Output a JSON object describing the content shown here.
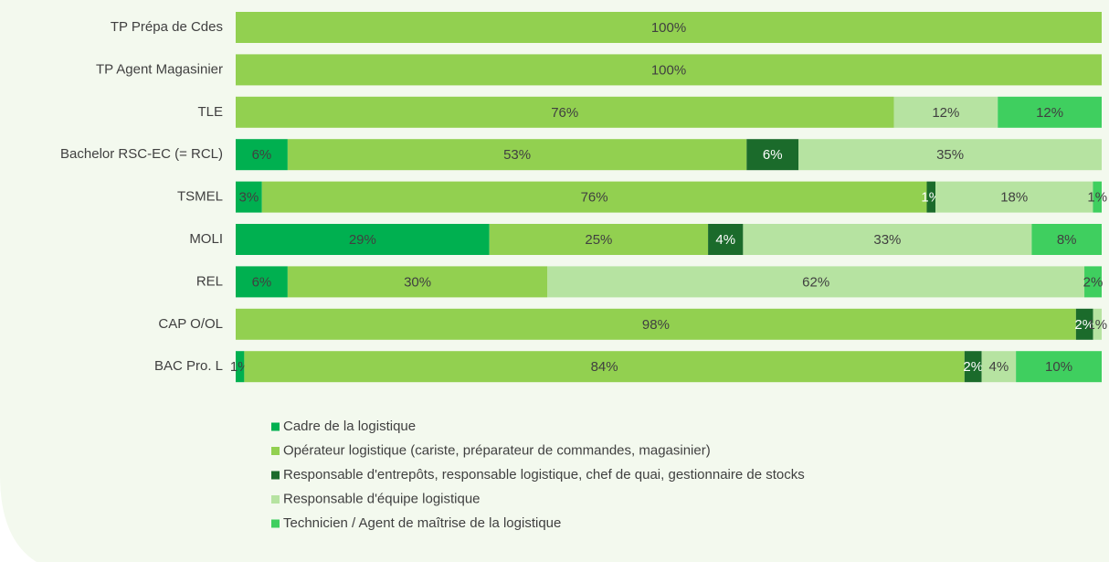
{
  "chart_data": {
    "type": "stacked_barh",
    "categories": [
      "TP Prépa de Cdes",
      "TP Agent Magasinier",
      "TLE",
      "Bachelor RSC-EC (= RCL)",
      "TSMEL",
      "MOLI",
      "REL",
      "CAP O/OL",
      "BAC Pro. L"
    ],
    "series": [
      {
        "name": "Cadre de la logistique",
        "color": "#00b050",
        "values": [
          0,
          0,
          0,
          6,
          3,
          29,
          6,
          0,
          1
        ],
        "value_labels": [
          null,
          null,
          null,
          "6%",
          "3%",
          "29%",
          "6%",
          null,
          "1%"
        ]
      },
      {
        "name": "Opérateur logistique (cariste, préparateur de commandes, magasinier)",
        "color": "#92d050",
        "values": [
          100,
          100,
          76,
          53,
          76,
          25,
          30,
          98,
          84
        ],
        "value_labels": [
          "100%",
          "100%",
          "76%",
          "53%",
          "76%",
          "25%",
          "30%",
          "98%",
          "84%"
        ]
      },
      {
        "name": "Responsable d'entrepôts, responsable logistique, chef de quai, gestionnaire de stocks",
        "color": "#1b6b2b",
        "values": [
          0,
          0,
          0,
          6,
          1,
          4,
          0,
          2,
          2
        ],
        "value_labels": [
          null,
          null,
          null,
          "6%",
          "1%",
          "4%",
          null,
          "2%",
          "2%"
        ]
      },
      {
        "name": "Responsable d'équipe logistique",
        "color": "#b6e3a1",
        "values": [
          0,
          0,
          12,
          35,
          18,
          33,
          62,
          1,
          4
        ],
        "value_labels": [
          null,
          null,
          "12%",
          "35%",
          "18%",
          "33%",
          "62%",
          "1%",
          "4%"
        ]
      },
      {
        "name": "Technicien / Agent de maîtrise de la logistique",
        "color": "#3fcf5f",
        "values": [
          0,
          0,
          12,
          0,
          1,
          8,
          2,
          0,
          10
        ],
        "value_labels": [
          null,
          null,
          "12%",
          null,
          "1%",
          "8%",
          "2%",
          null,
          "10%"
        ]
      }
    ]
  }
}
